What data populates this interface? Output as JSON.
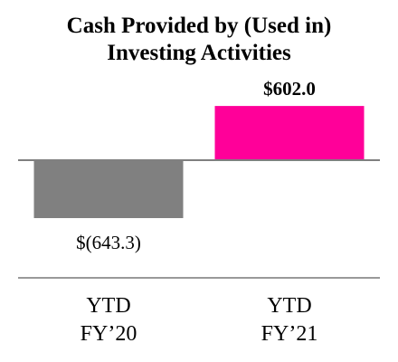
{
  "chart_data": {
    "type": "bar",
    "title_lines": [
      "Cash Provided by (Used in)",
      "Investing Activities"
    ],
    "categories": [
      {
        "lines": [
          "YTD",
          "FY’20"
        ]
      },
      {
        "lines": [
          "YTD",
          "FY’21"
        ]
      }
    ],
    "values": [
      -643.3,
      602.0
    ],
    "data_labels": [
      "$(643.3)",
      "$602.0"
    ],
    "colors": [
      "#808080",
      "#ff0099"
    ],
    "label_styles": [
      "normal",
      "bold"
    ],
    "ylim": [
      -700,
      700
    ],
    "grid": false,
    "legend": "none"
  }
}
